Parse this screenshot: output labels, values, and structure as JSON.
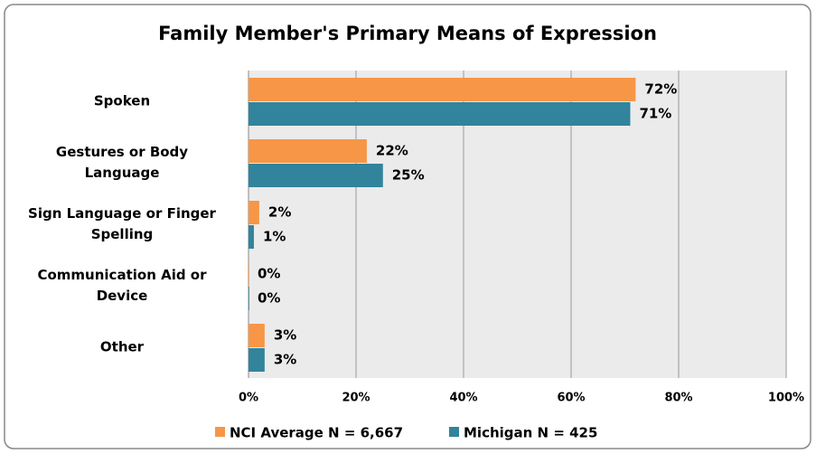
{
  "chart_data": {
    "type": "bar",
    "orientation": "horizontal",
    "title": "Family Member's Primary Means of Expression",
    "categories": [
      "Spoken",
      "Gestures or Body\nLanguage",
      "Sign Language or Finger\nSpelling",
      "Communication Aid or\nDevice",
      "Other"
    ],
    "series": [
      {
        "name": "NCI Average N = 6,667",
        "color": "#f79646",
        "values": [
          72,
          22,
          2,
          0,
          3
        ],
        "value_labels": [
          "72%",
          "22%",
          "2%",
          "0%",
          "3%"
        ]
      },
      {
        "name": "Michigan N = 425",
        "color": "#31849b",
        "values": [
          71,
          25,
          1,
          0,
          3
        ],
        "value_labels": [
          "71%",
          "25%",
          "1%",
          "0%",
          "3%"
        ]
      }
    ],
    "xlim": [
      0,
      100
    ],
    "xticks": [
      {
        "value": 0,
        "label": "0%"
      },
      {
        "value": 20,
        "label": "20%"
      },
      {
        "value": 40,
        "label": "40%"
      },
      {
        "value": 60,
        "label": "60%"
      },
      {
        "value": 80,
        "label": "80%"
      },
      {
        "value": 100,
        "label": "100%"
      }
    ],
    "grid": true,
    "legend": "bottom"
  }
}
